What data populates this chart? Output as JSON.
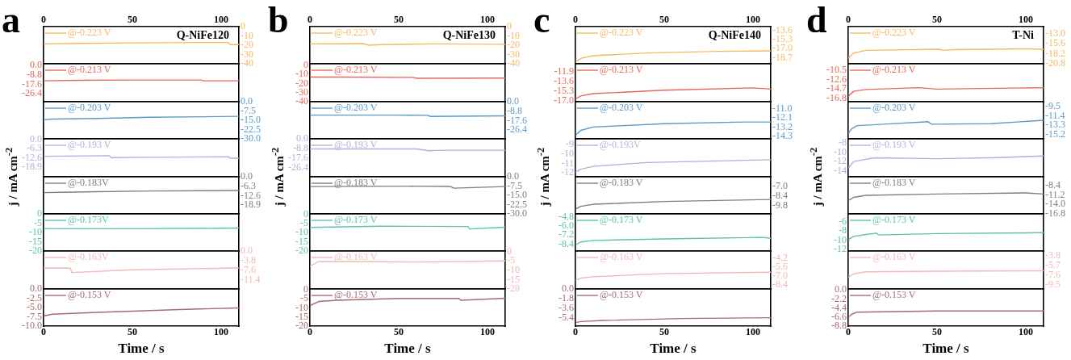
{
  "chart_data": [
    {
      "type": "line",
      "title": "a",
      "annotations": [
        "Q-NiFe120"
      ],
      "legend": "top left",
      "xlim": [
        0,
        110
      ],
      "x2lim": [
        0,
        110
      ],
      "x2ticks": [
        0,
        50,
        100
      ],
      "y2lim": [
        -40,
        0
      ],
      "y2ticks": [
        0,
        -10,
        -20,
        -30,
        -40
      ],
      "tick_labels": [
        "x2",
        "y2"
      ],
      "series": [
        {
          "name": "@-0.223 V",
          "color": "#f5b962",
          "axis": "y2",
          "x": [
            0,
            20,
            50,
            90,
            104,
            105,
            110
          ],
          "values": [
            -18.6,
            -18,
            -17.5,
            -17.1,
            -17.1,
            -19.4,
            -19.4
          ]
        }
      ]
    },
    {
      "type": "line",
      "legend": "top left",
      "xlim": [
        0,
        110
      ],
      "ylim": [
        -33.7,
        1.5
      ],
      "yticks": [
        {
          "value": 0,
          "label": "0.0"
        },
        -8.8,
        -17.6,
        -26.4
      ],
      "tick_labels": "y",
      "series": [
        {
          "name": "@-0.213 V",
          "color": "#e8675a",
          "x": [
            0,
            20,
            50,
            89,
            90,
            110
          ],
          "values": [
            -14.3,
            -13.8,
            -13.6,
            -13.6,
            -14.3,
            -14.3
          ]
        }
      ]
    },
    {
      "type": "line",
      "legend": "top left",
      "xlim": [
        0,
        110
      ],
      "y2lim": [
        -30,
        0
      ],
      "y2ticks": [
        {
          "value": 0,
          "label": "0.0"
        },
        -7.5,
        {
          "value": -15,
          "label": "-15.0"
        },
        -22.5,
        {
          "value": -30,
          "label": "-30.0"
        }
      ],
      "tick_labels": "y2",
      "series": [
        {
          "name": "@-0.203 V",
          "color": "#5b9bc9",
          "axis": "y2",
          "x": [
            0,
            5,
            30,
            60,
            100,
            110
          ],
          "values": [
            -14.6,
            -14,
            -13.5,
            -12.6,
            -12,
            -11.8
          ]
        }
      ]
    },
    {
      "type": "line",
      "ylabel": "j / mA cm$^{-2}$",
      "legend": "top left",
      "xlim": [
        0,
        110
      ],
      "ylim": [
        -25.5,
        0.2
      ],
      "yticks": [
        {
          "value": 0,
          "label": "0.0"
        },
        -6.3,
        -12.6,
        -18.9
      ],
      "tick_labels": "y",
      "series": [
        {
          "name": "@-0.193 V",
          "color": "#b4b0d8",
          "x": [
            0,
            37,
            38,
            60,
            104,
            105,
            110
          ],
          "values": [
            -11.6,
            -11.2,
            -12.5,
            -12.3,
            -11.9,
            -12.9,
            -12.9
          ]
        }
      ]
    },
    {
      "type": "line",
      "legend": "top left",
      "xlim": [
        0,
        110
      ],
      "y2lim": [
        -24.8,
        0
      ],
      "y2ticks": [
        {
          "value": 0,
          "label": "0.0"
        },
        -6.3,
        -12.6,
        -18.9
      ],
      "tick_labels": "y2",
      "series": [
        {
          "name": "@-0.183V",
          "color": "#7f7f7f",
          "axis": "y2",
          "x": [
            0,
            10,
            30,
            60,
            90,
            110
          ],
          "values": [
            -10.6,
            -10.4,
            -10,
            -9.5,
            -9.3,
            -9.2
          ]
        }
      ]
    },
    {
      "type": "line",
      "legend": "top left",
      "xlim": [
        0,
        110
      ],
      "ylim": [
        -20,
        0
      ],
      "yticks": [
        0,
        -5,
        -10,
        -15,
        -20
      ],
      "tick_labels": "y",
      "series": [
        {
          "name": "@-0.173V",
          "color": "#5fc0b0",
          "x": [
            0,
            10,
            50,
            100,
            110
          ],
          "values": [
            -7.9,
            -8,
            -8,
            -7.7,
            -7.6
          ]
        }
      ]
    },
    {
      "type": "line",
      "legend": "top left",
      "xlim": [
        0,
        110
      ],
      "y2lim": [
        -15,
        0
      ],
      "y2ticks": [
        {
          "value": 0,
          "label": "0.0"
        },
        -3.8,
        -7.6,
        -11.4
      ],
      "tick_labels": "y2",
      "series": [
        {
          "name": "@-0.163V",
          "color": "#f2b8b4",
          "axis": "y2",
          "x": [
            0,
            15,
            16,
            50,
            110
          ],
          "values": [
            -6.8,
            -6.8,
            -8.5,
            -7.4,
            -6.7
          ]
        }
      ]
    },
    {
      "type": "line",
      "xlabel": "Time / s",
      "legend": "top left",
      "xlim": [
        0,
        110
      ],
      "xticks": [
        0,
        50,
        100
      ],
      "ylim": [
        -10,
        0
      ],
      "yticks": [
        {
          "value": 0,
          "label": "0.0"
        },
        -2.5,
        {
          "value": -5,
          "label": "-5.0"
        },
        -7.5,
        {
          "value": -10,
          "label": "-10.0"
        }
      ],
      "tick_labels": [
        "x",
        "y"
      ],
      "series": [
        {
          "name": "@-0.153 V",
          "color": "#a86b6b",
          "x": [
            0,
            5,
            30,
            60,
            80,
            110
          ],
          "values": [
            -7.3,
            -6.8,
            -6.3,
            -5.8,
            -5.5,
            -5.1
          ]
        }
      ]
    },
    {
      "type": "line",
      "title": "b",
      "annotations": [
        "Q-NiFe130"
      ],
      "legend": "top left",
      "xlim": [
        0,
        110
      ],
      "x2lim": [
        0,
        110
      ],
      "x2ticks": [
        0,
        50,
        100
      ],
      "y2lim": [
        -40,
        0
      ],
      "y2ticks": [
        0,
        -10,
        -20,
        -30,
        -40
      ],
      "tick_labels": [
        "x2",
        "y2"
      ],
      "series": [
        {
          "name": "@-0.223 V",
          "color": "#f5b962",
          "axis": "y2",
          "x": [
            0,
            30,
            33,
            40,
            70,
            110
          ],
          "values": [
            -18.6,
            -18.3,
            -20,
            -19.3,
            -18.6,
            -19
          ]
        }
      ]
    },
    {
      "type": "line",
      "legend": "top left",
      "xlim": [
        0,
        110
      ],
      "ylim": [
        -40,
        1.7
      ],
      "yticks": [
        0,
        -10,
        -20,
        -30,
        -40
      ],
      "tick_labels": "y",
      "series": [
        {
          "name": "@-0.213 V",
          "color": "#e8675a",
          "x": [
            0,
            20,
            58,
            60,
            110
          ],
          "values": [
            -12.9,
            -12.9,
            -13.3,
            -14.3,
            -14.1
          ]
        }
      ]
    },
    {
      "type": "line",
      "legend": "top left",
      "xlim": [
        0,
        110
      ],
      "y2lim": [
        -34.6,
        0
      ],
      "y2ticks": [
        {
          "value": 0,
          "label": "0.0"
        },
        -8.8,
        -17.6,
        -26.4
      ],
      "tick_labels": "y2",
      "series": [
        {
          "name": "@-0.203 V",
          "color": "#5b9bc9",
          "axis": "y2",
          "x": [
            0,
            50,
            66,
            68,
            110
          ],
          "values": [
            -12.5,
            -12.5,
            -12.7,
            -13.7,
            -13.2
          ]
        }
      ]
    },
    {
      "type": "line",
      "ylabel": "j / mA cm$^{-2}$",
      "legend": "top left",
      "xlim": [
        0,
        110
      ],
      "ylim": [
        -34.7,
        0.2
      ],
      "yticks": [
        {
          "value": 0,
          "label": "0.0"
        },
        -8.8,
        -17.6,
        -26.4
      ],
      "tick_labels": "y",
      "series": [
        {
          "name": "@-0.193 V",
          "color": "#b4b0d8",
          "x": [
            0,
            60,
            67,
            75,
            110
          ],
          "values": [
            -9.1,
            -9.1,
            -10.8,
            -10.3,
            -10.3
          ]
        }
      ]
    },
    {
      "type": "line",
      "legend": "top left",
      "xlim": [
        0,
        110
      ],
      "y2lim": [
        -30,
        0
      ],
      "y2ticks": [
        {
          "value": 0,
          "label": "0.0"
        },
        -7.5,
        {
          "value": -15,
          "label": "-15.0"
        },
        -22.5,
        {
          "value": -30,
          "label": "-30.0"
        }
      ],
      "tick_labels": "y2",
      "series": [
        {
          "name": "@-0.183 V",
          "color": "#7f7f7f",
          "axis": "y2",
          "x": [
            0,
            60,
            79,
            81,
            110
          ],
          "values": [
            -7.9,
            -7.6,
            -7.8,
            -9.2,
            -7.9
          ]
        }
      ]
    },
    {
      "type": "line",
      "legend": "top left",
      "xlim": [
        0,
        110
      ],
      "ylim": [
        -20,
        0.3
      ],
      "yticks": [
        0,
        -5,
        -10,
        -15,
        -20
      ],
      "tick_labels": "y",
      "series": [
        {
          "name": "@-0.173 V",
          "color": "#5fc0b0",
          "x": [
            0,
            40,
            89,
            90,
            110
          ],
          "values": [
            -7.1,
            -6.4,
            -6.6,
            -7.9,
            -7
          ]
        }
      ]
    },
    {
      "type": "line",
      "legend": "top left",
      "xlim": [
        0,
        110
      ],
      "y2lim": [
        -20,
        0.3
      ],
      "y2ticks": [
        0,
        -5,
        -10,
        -15,
        -20
      ],
      "tick_labels": "y2",
      "series": [
        {
          "name": "@-0.163 V",
          "color": "#f2b8b4",
          "axis": "y2",
          "x": [
            0,
            5,
            30,
            60,
            110
          ],
          "values": [
            -7.9,
            -5.3,
            -5.3,
            -5.6,
            -5
          ]
        }
      ]
    },
    {
      "type": "line",
      "xlabel": "Time / s",
      "legend": "top left",
      "xlim": [
        0,
        110
      ],
      "xticks": [
        0,
        50,
        100
      ],
      "ylim": [
        -20,
        0.4
      ],
      "yticks": [
        0,
        -5,
        -10,
        -15,
        -20
      ],
      "tick_labels": [
        "x",
        "y"
      ],
      "series": [
        {
          "name": "@-0.153 V",
          "color": "#a86b6b",
          "x": [
            0,
            5,
            15,
            50,
            84,
            85,
            110
          ],
          "values": [
            -8.7,
            -6.5,
            -5.8,
            -4.8,
            -4.8,
            -5.8,
            -4.7
          ]
        }
      ]
    },
    {
      "type": "line",
      "title": "c",
      "annotations": [
        "Q-NiFe140"
      ],
      "legend": "top left",
      "xlim": [
        0,
        110
      ],
      "x2lim": [
        0,
        110
      ],
      "x2ticks": [
        0,
        50,
        100
      ],
      "y2lim": [
        -19.8,
        -12.9
      ],
      "y2ticks": [
        -13.6,
        -15.3,
        {
          "value": -17,
          "label": "-17.0"
        },
        -18.7
      ],
      "tick_labels": [
        "x2",
        "y2"
      ],
      "series": [
        {
          "name": "@-0.223 V",
          "color": "#f5b962",
          "axis": "y2",
          "x": [
            0,
            3,
            10,
            40,
            80,
            110
          ],
          "values": [
            -19.5,
            -18.8,
            -18.3,
            -17.8,
            -17.5,
            -17.4
          ]
        }
      ]
    },
    {
      "type": "line",
      "legend": "top left",
      "xlim": [
        0,
        110
      ],
      "ylim": [
        -17.1,
        -10.5
      ],
      "yticks": [
        -11.9,
        -13.6,
        -15.3,
        {
          "value": -17,
          "label": "-17.0"
        }
      ],
      "tick_labels": "y",
      "series": [
        {
          "name": "@-0.213 V",
          "color": "#e8675a",
          "x": [
            0,
            3,
            10,
            50,
            100,
            110
          ],
          "values": [
            -16.6,
            -16.1,
            -15.7,
            -15.1,
            -14.7,
            -14.9
          ]
        }
      ]
    },
    {
      "type": "line",
      "legend": "top left",
      "xlim": [
        0,
        110
      ],
      "y2lim": [
        -14.6,
        -10.2
      ],
      "y2ticks": [
        {
          "value": -11,
          "label": "-11.0"
        },
        -12.1,
        -13.2,
        -14.3
      ],
      "tick_labels": "y2",
      "series": [
        {
          "name": "@-0.203 V",
          "color": "#5b9bc9",
          "axis": "y2",
          "x": [
            0,
            3,
            10,
            50,
            95,
            110
          ],
          "values": [
            -14.2,
            -13.6,
            -13.2,
            -12.8,
            -12.6,
            -12.6
          ]
        }
      ]
    },
    {
      "type": "line",
      "ylabel": "j / mA cm$^{-2}$",
      "legend": "top left",
      "xlim": [
        0,
        110
      ],
      "ylim": [
        -12.4,
        -8.4
      ],
      "yticks": [
        -9,
        -10,
        -11,
        -12
      ],
      "tick_labels": "y",
      "series": [
        {
          "name": "@-0.193V",
          "color": "#b4b0d8",
          "x": [
            0,
            3,
            10,
            40,
            75,
            110
          ],
          "values": [
            -11.9,
            -11.6,
            -11.3,
            -10.9,
            -10.75,
            -10.6
          ]
        }
      ]
    },
    {
      "type": "line",
      "legend": "top left",
      "xlim": [
        0,
        110
      ],
      "y2lim": [
        -11,
        -5.6
      ],
      "y2ticks": [
        {
          "value": -7,
          "label": "-7.0"
        },
        -8.4,
        -9.8
      ],
      "tick_labels": "y2",
      "series": [
        {
          "name": "@-0.183 V",
          "color": "#7f7f7f",
          "axis": "y2",
          "x": [
            0,
            3,
            10,
            50,
            110
          ],
          "values": [
            -10.3,
            -9.9,
            -9.6,
            -9.2,
            -8.9
          ]
        }
      ]
    },
    {
      "type": "line",
      "legend": "top left",
      "xlim": [
        0,
        110
      ],
      "ylim": [
        -9.3,
        -4.4
      ],
      "yticks": [
        -4.8,
        {
          "value": -6,
          "label": "-6.0"
        },
        -7.2,
        -8.4
      ],
      "tick_labels": "y",
      "series": [
        {
          "name": "@-0.173 V",
          "color": "#5fc0b0",
          "x": [
            0,
            3,
            10,
            50,
            105,
            110
          ],
          "values": [
            -8.5,
            -8.1,
            -7.9,
            -7.7,
            -7.5,
            -7.6
          ]
        }
      ]
    },
    {
      "type": "line",
      "legend": "top left",
      "xlim": [
        0,
        110
      ],
      "y2lim": [
        -9,
        -3.1
      ],
      "y2ticks": [
        -4.2,
        -5.6,
        {
          "value": -7,
          "label": "-7.0"
        },
        -8.4
      ],
      "tick_labels": "y2",
      "series": [
        {
          "name": "@-0.163 V",
          "color": "#f2b8b4",
          "axis": "y2",
          "x": [
            0,
            3,
            10,
            50,
            110
          ],
          "values": [
            -7.7,
            -7.3,
            -7.1,
            -6.6,
            -6.4
          ]
        }
      ]
    },
    {
      "type": "line",
      "xlabel": "Time / s",
      "legend": "top left",
      "xlim": [
        0,
        110
      ],
      "xticks": [
        0,
        50,
        100
      ],
      "ylim": [
        -6.9,
        0
      ],
      "yticks": [
        {
          "value": 0,
          "label": "0.0"
        },
        -1.8,
        -3.6,
        -5.4
      ],
      "tick_labels": [
        "x",
        "y"
      ],
      "series": [
        {
          "name": "@-0.153 V",
          "color": "#a86b6b",
          "x": [
            0,
            3,
            15,
            60,
            110
          ],
          "values": [
            -6.25,
            -6.05,
            -5.85,
            -5.5,
            -5.35
          ]
        }
      ]
    },
    {
      "type": "line",
      "title": "d",
      "annotations": [
        "T-Ni"
      ],
      "legend": "top left",
      "xlim": [
        0,
        110
      ],
      "x2lim": [
        0,
        110
      ],
      "x2ticks": [
        0,
        50,
        100
      ],
      "y2lim": [
        -20.8,
        -11.1
      ],
      "y2ticks": [
        {
          "value": -13,
          "label": "-13.0"
        },
        -15.6,
        -18.2,
        -20.8
      ],
      "tick_labels": [
        "x2",
        "y2"
      ],
      "series": [
        {
          "name": "@-0.223 V",
          "color": "#f5b962",
          "axis": "y2",
          "x": [
            0,
            3,
            10,
            52,
            53,
            60,
            100,
            110
          ],
          "values": [
            -19.4,
            -18,
            -17.3,
            -17,
            -17.3,
            -17.1,
            -16.9,
            -17
          ]
        }
      ]
    },
    {
      "type": "line",
      "legend": "top left",
      "xlim": [
        0,
        110
      ],
      "ylim": [
        -17.5,
        -9.1
      ],
      "yticks": [
        -10.5,
        -12.6,
        -14.7,
        -16.8
      ],
      "tick_labels": "y",
      "series": [
        {
          "name": "@-0.213 V",
          "color": "#e8675a",
          "x": [
            0,
            3,
            10,
            40,
            50,
            110
          ],
          "values": [
            -16.3,
            -15.2,
            -14.8,
            -14.4,
            -14.7,
            -14.4
          ]
        }
      ]
    },
    {
      "type": "line",
      "legend": "top left",
      "xlim": [
        0,
        110
      ],
      "y2lim": [
        -16.1,
        -8.5
      ],
      "y2ticks": [
        -9.5,
        -11.4,
        -13.3,
        -15.2
      ],
      "tick_labels": "y2",
      "series": [
        {
          "name": "@-0.203 V",
          "color": "#5b9bc9",
          "axis": "y2",
          "x": [
            0,
            2,
            5,
            20,
            45,
            47,
            80,
            110
          ],
          "values": [
            -15,
            -14,
            -13.4,
            -13.1,
            -12.6,
            -13.1,
            -13,
            -12.3
          ]
        }
      ]
    },
    {
      "type": "line",
      "ylabel": "j / mA cm$^{-2}$",
      "legend": "top left",
      "xlim": [
        0,
        110
      ],
      "ylim": [
        -15.3,
        -7.1
      ],
      "yticks": [
        -8,
        -10,
        -12,
        -14
      ],
      "tick_labels": "y",
      "series": [
        {
          "name": "@-0.193 V",
          "color": "#b4b0d8",
          "x": [
            0,
            3,
            15,
            50,
            80,
            110
          ],
          "values": [
            -13.5,
            -12,
            -11.2,
            -11.4,
            -11.2,
            -10.8
          ]
        }
      ]
    },
    {
      "type": "line",
      "legend": "top left",
      "xlim": [
        0,
        110
      ],
      "y2lim": [
        -16.8,
        -5.8
      ],
      "y2ticks": [
        -8.4,
        -11.2,
        {
          "value": -14,
          "label": "-14.0"
        },
        -16.8
      ],
      "tick_labels": "y2",
      "series": [
        {
          "name": "@-0.183 V",
          "color": "#7f7f7f",
          "axis": "y2",
          "x": [
            0,
            3,
            10,
            50,
            100,
            110
          ],
          "values": [
            -12.9,
            -11.9,
            -11.3,
            -10.9,
            -10.6,
            -10.9
          ]
        }
      ]
    },
    {
      "type": "line",
      "legend": "top left",
      "xlim": [
        0,
        110
      ],
      "ylim": [
        -12.4,
        -4.3
      ],
      "yticks": [
        -6,
        -8,
        -10,
        -12
      ],
      "tick_labels": "y",
      "series": [
        {
          "name": "@-0.173 V",
          "color": "#5fc0b0",
          "x": [
            0,
            3,
            10,
            16,
            17,
            50,
            110
          ],
          "values": [
            -9.9,
            -9.2,
            -8.8,
            -8.5,
            -8.9,
            -8.6,
            -8.4
          ]
        }
      ]
    },
    {
      "type": "line",
      "legend": "top left",
      "xlim": [
        0,
        110
      ],
      "y2lim": [
        -10.4,
        -2.9
      ],
      "y2ticks": [
        -3.8,
        -5.7,
        -7.6,
        -9.5
      ],
      "tick_labels": "y2",
      "series": [
        {
          "name": "@-0.163 V",
          "color": "#f2b8b4",
          "axis": "y2",
          "x": [
            0,
            3,
            10,
            50,
            110
          ],
          "values": [
            -8.1,
            -7.4,
            -7,
            -6.9,
            -6.8
          ]
        }
      ]
    },
    {
      "type": "line",
      "xlabel": "Time / s",
      "legend": "top left",
      "xlim": [
        0,
        110
      ],
      "xticks": [
        0,
        50,
        100
      ],
      "ylim": [
        -8.8,
        0.25
      ],
      "yticks": [
        {
          "value": 0,
          "label": "0.0"
        },
        -2.2,
        -4.4,
        -6.6,
        -8.8
      ],
      "tick_labels": [
        "x",
        "y"
      ],
      "series": [
        {
          "name": "@-0.153 V",
          "color": "#a86b6b",
          "x": [
            0,
            2,
            5,
            50,
            110
          ],
          "values": [
            -6.65,
            -5.9,
            -5.4,
            -5.1,
            -5.1
          ]
        }
      ]
    }
  ]
}
